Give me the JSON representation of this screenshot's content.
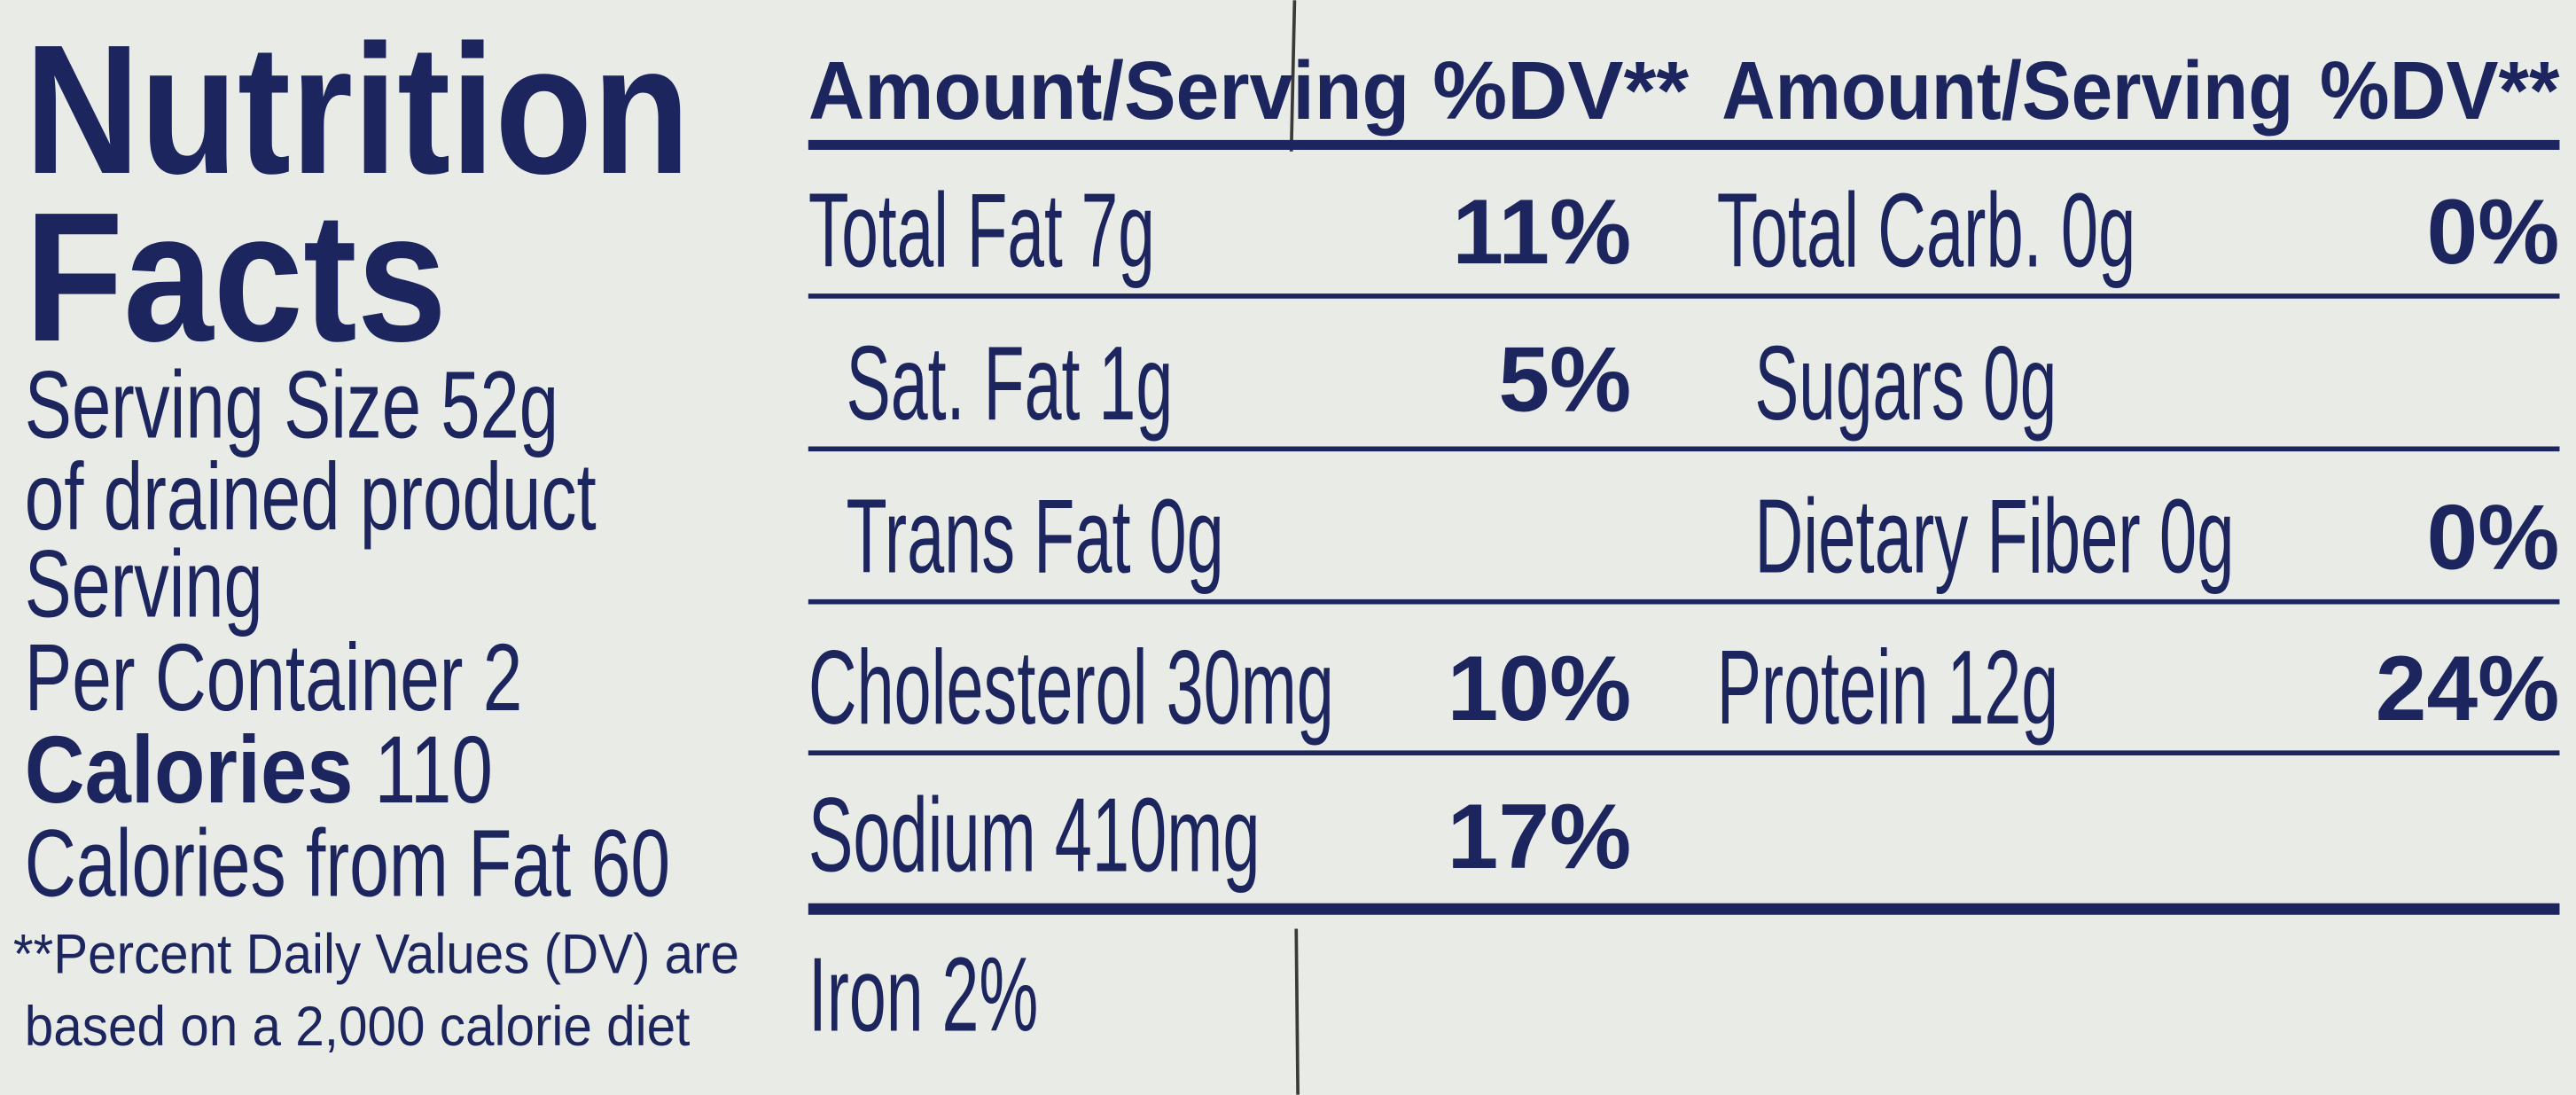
{
  "title": [
    "Nutrition",
    "Facts"
  ],
  "serving": [
    "Serving Size 52g",
    "of drained product",
    "Serving",
    "Per Container 2"
  ],
  "calories": {
    "label": "Calories",
    "value": "110"
  },
  "calories_from_fat": "Calories from Fat 60",
  "footnote": [
    "**Percent Daily Values (DV) are",
    "based on a 2,000 calorie diet"
  ],
  "table": {
    "headers": [
      "Amount/Serving",
      "%DV**",
      "Amount/Serving",
      "%DV**"
    ],
    "rows": [
      [
        "Total Fat 7g",
        "11%",
        "Total Carb. 0g",
        "0%"
      ],
      [
        "Sat. Fat 1g",
        "5%",
        "Sugars 0g",
        null
      ],
      [
        "Trans Fat 0g",
        null,
        "Dietary Fiber 0g",
        "0%"
      ],
      [
        "Cholesterol 30mg",
        "10%",
        "Protein 12g",
        "24%"
      ],
      [
        "Sodium 410mg",
        "17%",
        null,
        null
      ]
    ]
  },
  "iron": "Iron 2%"
}
